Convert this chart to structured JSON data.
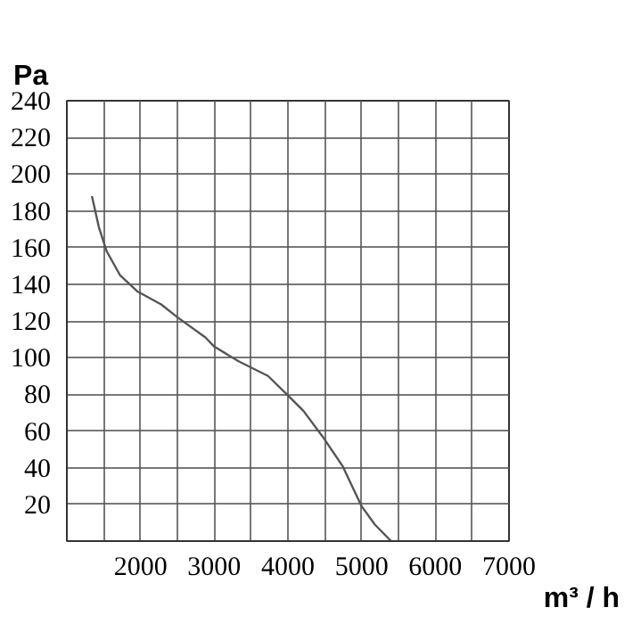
{
  "chart_data": {
    "type": "line",
    "xlabel": "m³ / h",
    "ylabel": "Pa",
    "x": [
      1340,
      1435,
      1540,
      1720,
      1960,
      2280,
      2500,
      2880,
      3000,
      3330,
      3730,
      4010,
      4210,
      4470,
      4740,
      5000,
      5180,
      5400
    ],
    "series": [
      {
        "color": "#555555",
        "values": [
          188,
          171,
          158,
          145,
          136,
          129,
          122,
          111,
          106,
          98,
          90,
          79,
          71,
          57,
          41,
          19,
          9,
          0
        ]
      }
    ],
    "xlim": [
      1000,
      7000
    ],
    "ylim": [
      0,
      240
    ],
    "xticks": [
      {
        "value": 1500,
        "label": null
      },
      2000,
      {
        "value": 2500,
        "label": null
      },
      3000,
      {
        "value": 3500,
        "label": null
      },
      4000,
      {
        "value": 4500,
        "label": null
      },
      5000,
      {
        "value": 5500,
        "label": null
      },
      6000,
      {
        "value": 6500,
        "label": null
      },
      7000
    ],
    "yticks": [
      20,
      40,
      60,
      80,
      100,
      120,
      140,
      160,
      180,
      200,
      220,
      240
    ],
    "grid": true,
    "marker": "none",
    "line_style": "solid"
  }
}
